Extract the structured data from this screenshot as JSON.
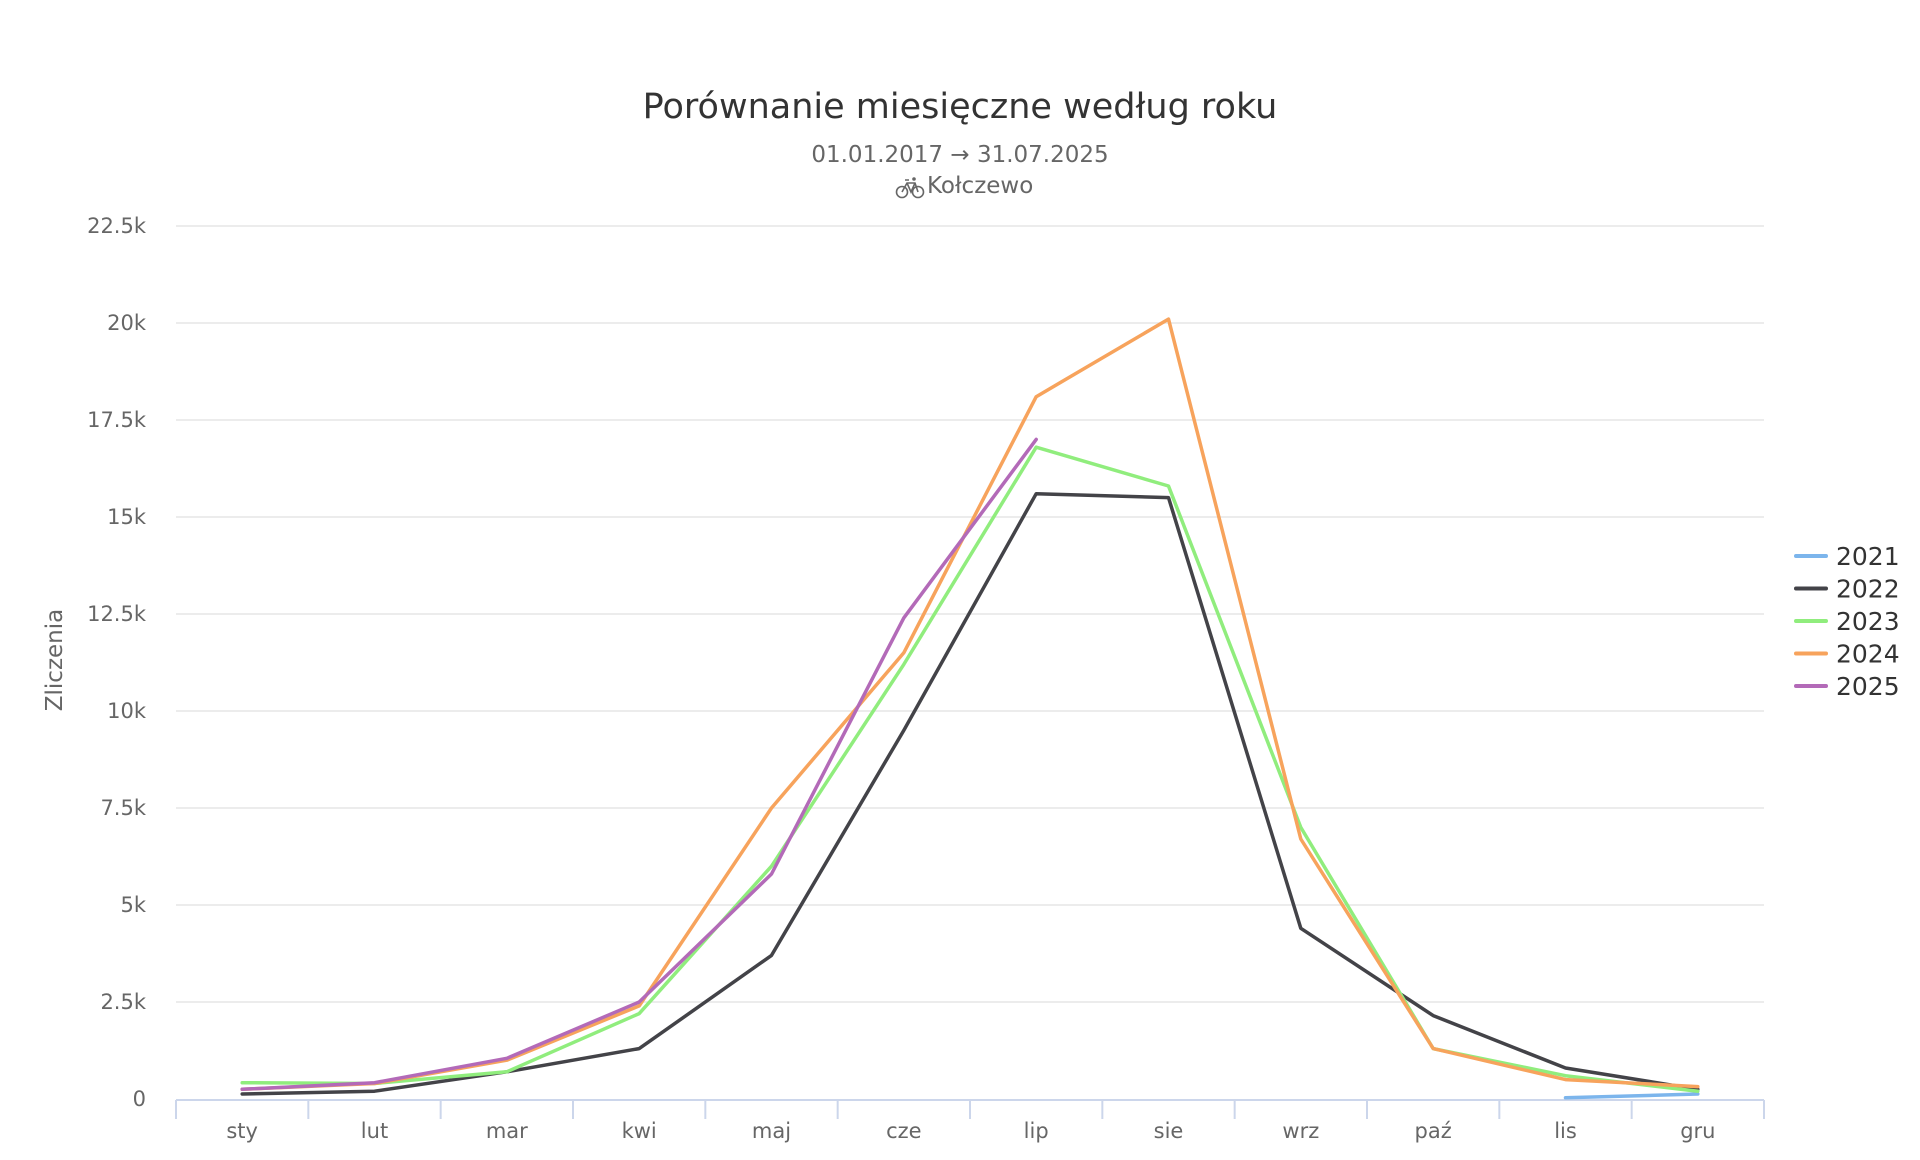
{
  "chart_data": {
    "type": "line",
    "title": "Porównanie miesięczne według roku",
    "subtitle": "01.01.2017 → 31.07.2025",
    "location_icon": "bicycle-icon",
    "location": "Kołczewo",
    "ylabel": "Zliczenia",
    "xlabel": "",
    "ylim": [
      0,
      22500
    ],
    "y_ticks": [
      0,
      2500,
      5000,
      7500,
      10000,
      12500,
      15000,
      17500,
      20000,
      22500
    ],
    "y_tick_labels": [
      "0",
      "2.5k",
      "5k",
      "7.5k",
      "10k",
      "12.5k",
      "15k",
      "17.5k",
      "20k",
      "22.5k"
    ],
    "grid": true,
    "legend_position": "right",
    "categories": [
      "sty",
      "lut",
      "mar",
      "kwi",
      "maj",
      "cze",
      "lip",
      "sie",
      "wrz",
      "paź",
      "lis",
      "gru"
    ],
    "series": [
      {
        "name": "2021",
        "color": "#7cb5ec",
        "values": [
          null,
          null,
          null,
          null,
          null,
          null,
          null,
          null,
          null,
          null,
          30,
          130
        ]
      },
      {
        "name": "2022",
        "color": "#434348",
        "values": [
          130,
          200,
          700,
          1300,
          3700,
          9500,
          15600,
          15500,
          4400,
          2150,
          800,
          250
        ]
      },
      {
        "name": "2023",
        "color": "#90ed7d",
        "values": [
          420,
          400,
          700,
          2200,
          6000,
          11200,
          16800,
          15800,
          7000,
          1300,
          600,
          200
        ]
      },
      {
        "name": "2024",
        "color": "#f7a35c",
        "values": [
          250,
          400,
          1000,
          2400,
          7500,
          11500,
          18100,
          20100,
          6700,
          1300,
          500,
          320
        ]
      },
      {
        "name": "2025",
        "color": "#b36ab8",
        "values": [
          250,
          420,
          1050,
          2500,
          5800,
          12400,
          17000,
          null,
          null,
          null,
          null,
          null
        ]
      }
    ]
  }
}
